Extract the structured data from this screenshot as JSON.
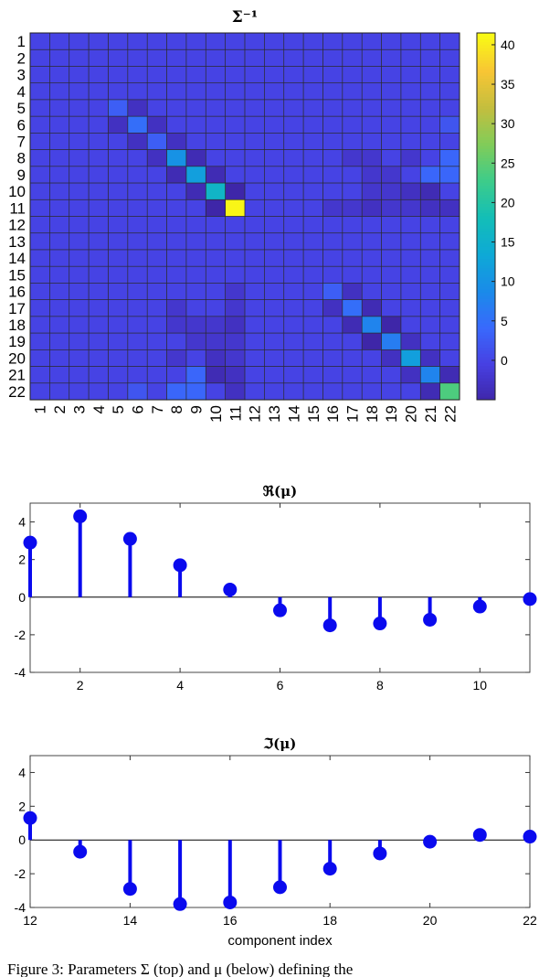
{
  "chart_data": [
    {
      "type": "heatmap",
      "title": "Σ⁻¹",
      "row_labels": [
        "1",
        "2",
        "3",
        "4",
        "5",
        "6",
        "7",
        "8",
        "9",
        "10",
        "11",
        "12",
        "13",
        "14",
        "15",
        "16",
        "17",
        "18",
        "19",
        "20",
        "21",
        "22"
      ],
      "col_labels": [
        "1",
        "2",
        "3",
        "4",
        "5",
        "6",
        "7",
        "8",
        "9",
        "10",
        "11",
        "12",
        "13",
        "14",
        "15",
        "16",
        "17",
        "18",
        "19",
        "20",
        "21",
        "22"
      ],
      "colorbar_ticks": [
        0,
        5,
        10,
        15,
        20,
        25,
        30,
        35,
        40
      ],
      "colorbar_range": [
        -5,
        41.5
      ],
      "colormap": "parula",
      "diagonal": [
        0,
        0,
        0,
        0,
        3,
        5,
        3,
        10,
        12,
        16,
        41,
        0,
        0,
        0,
        0,
        3,
        5,
        8,
        7,
        12,
        8,
        24
      ],
      "off_diagonal": [
        {
          "i": 5,
          "j": 6,
          "v": -3
        },
        {
          "i": 6,
          "j": 7,
          "v": -3
        },
        {
          "i": 7,
          "j": 8,
          "v": -3
        },
        {
          "i": 8,
          "j": 9,
          "v": -4
        },
        {
          "i": 9,
          "j": 10,
          "v": -4
        },
        {
          "i": 10,
          "j": 11,
          "v": -5
        },
        {
          "i": 16,
          "j": 17,
          "v": -3
        },
        {
          "i": 17,
          "j": 18,
          "v": -4
        },
        {
          "i": 18,
          "j": 19,
          "v": -5
        },
        {
          "i": 19,
          "j": 20,
          "v": -3
        },
        {
          "i": 20,
          "j": 21,
          "v": -3
        },
        {
          "i": 21,
          "j": 22,
          "v": -4
        },
        {
          "i": 8,
          "j": 22,
          "v": 4
        },
        {
          "i": 9,
          "j": 22,
          "v": 4
        },
        {
          "i": 9,
          "j": 21,
          "v": 4
        },
        {
          "i": 6,
          "j": 22,
          "v": 2
        },
        {
          "i": 10,
          "j": 21,
          "v": -4
        },
        {
          "i": 10,
          "j": 20,
          "v": -3
        },
        {
          "i": 9,
          "j": 21,
          "v": 4
        },
        {
          "i": 8,
          "j": 18,
          "v": -2
        },
        {
          "i": 8,
          "j": 20,
          "v": -2
        },
        {
          "i": 9,
          "j": 19,
          "v": -2
        },
        {
          "i": 9,
          "j": 18,
          "v": -2
        },
        {
          "i": 10,
          "j": 19,
          "v": -2
        },
        {
          "i": 10,
          "j": 18,
          "v": -2
        },
        {
          "i": 11,
          "j": 18,
          "v": -3
        },
        {
          "i": 11,
          "j": 16,
          "v": -2
        },
        {
          "i": 11,
          "j": 20,
          "v": -2
        },
        {
          "i": 11,
          "j": 21,
          "v": -3
        },
        {
          "i": 8,
          "j": 17,
          "v": -2
        },
        {
          "i": 11,
          "j": 17,
          "v": -2
        },
        {
          "i": 11,
          "j": 19,
          "v": -2
        },
        {
          "i": 11,
          "j": 22,
          "v": -3
        }
      ]
    },
    {
      "type": "scatter",
      "style": "stem",
      "title": "ℜ(μ)",
      "xlabel": "",
      "x": [
        1,
        2,
        3,
        4,
        5,
        6,
        7,
        8,
        9,
        10,
        11
      ],
      "y": [
        2.9,
        4.3,
        3.1,
        1.7,
        0.4,
        -0.7,
        -1.5,
        -1.4,
        -1.2,
        -0.5,
        -0.1
      ],
      "xlim": [
        1,
        11
      ],
      "ylim": [
        -4,
        5
      ],
      "xticks": [
        2,
        4,
        6,
        8,
        10
      ],
      "yticks": [
        -4,
        -2,
        0,
        2,
        4
      ]
    },
    {
      "type": "scatter",
      "style": "stem",
      "title": "ℑ(μ)",
      "xlabel": "component index",
      "x": [
        12,
        13,
        14,
        15,
        16,
        17,
        18,
        19,
        20,
        21,
        22
      ],
      "y": [
        1.3,
        -0.7,
        -2.9,
        -3.8,
        -3.7,
        -2.8,
        -1.7,
        -0.8,
        -0.1,
        0.3,
        0.2
      ],
      "xlim": [
        12,
        22
      ],
      "ylim": [
        -4,
        5
      ],
      "xticks": [
        12,
        14,
        16,
        18,
        20,
        22
      ],
      "yticks": [
        -4,
        -2,
        0,
        2,
        4
      ]
    }
  ],
  "caption": "Figure 3:  Parameters Σ (top) and μ (below) defining the"
}
